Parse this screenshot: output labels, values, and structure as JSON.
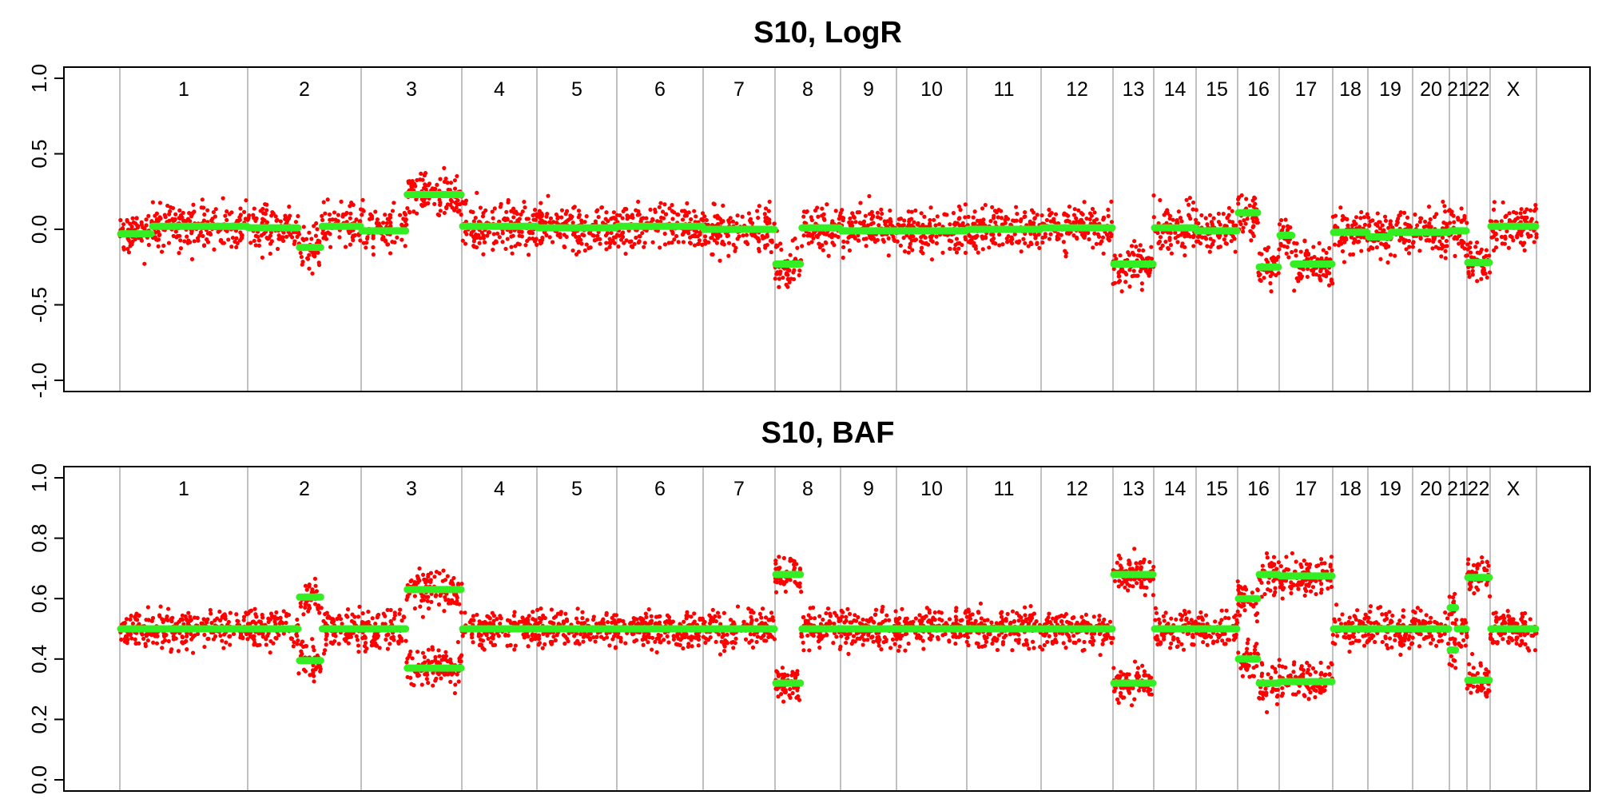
{
  "chromosomes": [
    {
      "label": "1"
    },
    {
      "label": "2"
    },
    {
      "label": "3"
    },
    {
      "label": "4"
    },
    {
      "label": "5"
    },
    {
      "label": "6"
    },
    {
      "label": "7"
    },
    {
      "label": "8"
    },
    {
      "label": "9"
    },
    {
      "label": "10"
    },
    {
      "label": "11"
    },
    {
      "label": "12"
    },
    {
      "label": "13"
    },
    {
      "label": "14"
    },
    {
      "label": "15"
    },
    {
      "label": "16"
    },
    {
      "label": "17"
    },
    {
      "label": "18"
    },
    {
      "label": "19"
    },
    {
      "label": "20"
    },
    {
      "label": "21"
    },
    {
      "label": "22"
    },
    {
      "label": "X"
    }
  ],
  "colors": {
    "points": "#ff0000",
    "segments": "#33ee22",
    "separators": "#c0c0c0",
    "frame": "#000000"
  },
  "chart_data": [
    {
      "type": "scatter",
      "title": "S10, LogR",
      "xlabel": "",
      "ylabel": "",
      "ylim": [
        -1.0,
        1.0
      ],
      "yticks": [
        "-1.0",
        "-0.5",
        "0.0",
        "0.5",
        "1.0"
      ],
      "grid": false,
      "segments": [
        {
          "chrom": "1",
          "from": 0.0,
          "to": 0.25,
          "value": -0.03
        },
        {
          "chrom": "1",
          "from": 0.25,
          "to": 1.0,
          "value": 0.02
        },
        {
          "chrom": "2",
          "from": 0.0,
          "to": 0.45,
          "value": 0.01
        },
        {
          "chrom": "2",
          "from": 0.45,
          "to": 0.65,
          "value": -0.12
        },
        {
          "chrom": "2",
          "from": 0.65,
          "to": 1.0,
          "value": 0.02
        },
        {
          "chrom": "3",
          "from": 0.0,
          "to": 0.45,
          "value": -0.01
        },
        {
          "chrom": "3",
          "from": 0.45,
          "to": 1.0,
          "value": 0.23
        },
        {
          "chrom": "4",
          "from": 0.0,
          "to": 1.0,
          "value": 0.02
        },
        {
          "chrom": "5",
          "from": 0.0,
          "to": 1.0,
          "value": 0.01
        },
        {
          "chrom": "6",
          "from": 0.0,
          "to": 1.0,
          "value": 0.02
        },
        {
          "chrom": "7",
          "from": 0.0,
          "to": 1.0,
          "value": 0.0
        },
        {
          "chrom": "8",
          "from": 0.0,
          "to": 0.4,
          "value": -0.23
        },
        {
          "chrom": "8",
          "from": 0.4,
          "to": 1.0,
          "value": 0.01
        },
        {
          "chrom": "9",
          "from": 0.0,
          "to": 1.0,
          "value": -0.01
        },
        {
          "chrom": "10",
          "from": 0.0,
          "to": 1.0,
          "value": -0.01
        },
        {
          "chrom": "11",
          "from": 0.0,
          "to": 1.0,
          "value": 0.0
        },
        {
          "chrom": "12",
          "from": 0.0,
          "to": 1.0,
          "value": 0.01
        },
        {
          "chrom": "13",
          "from": 0.0,
          "to": 1.0,
          "value": -0.23
        },
        {
          "chrom": "14",
          "from": 0.0,
          "to": 1.0,
          "value": 0.01
        },
        {
          "chrom": "15",
          "from": 0.0,
          "to": 1.0,
          "value": -0.01
        },
        {
          "chrom": "16",
          "from": 0.0,
          "to": 0.5,
          "value": 0.11
        },
        {
          "chrom": "16",
          "from": 0.5,
          "to": 1.0,
          "value": -0.25
        },
        {
          "chrom": "17",
          "from": 0.0,
          "to": 0.25,
          "value": -0.04
        },
        {
          "chrom": "17",
          "from": 0.25,
          "to": 0.5,
          "value": -0.23
        },
        {
          "chrom": "17",
          "from": 0.5,
          "to": 1.0,
          "value": -0.23
        },
        {
          "chrom": "18",
          "from": 0.0,
          "to": 1.0,
          "value": -0.02
        },
        {
          "chrom": "19",
          "from": 0.0,
          "to": 0.5,
          "value": -0.05
        },
        {
          "chrom": "19",
          "from": 0.5,
          "to": 1.0,
          "value": -0.02
        },
        {
          "chrom": "20",
          "from": 0.0,
          "to": 1.0,
          "value": -0.02
        },
        {
          "chrom": "21",
          "from": 0.0,
          "to": 1.0,
          "value": -0.01
        },
        {
          "chrom": "22",
          "from": 0.0,
          "to": 1.0,
          "value": -0.22
        },
        {
          "chrom": "X",
          "from": 0.0,
          "to": 1.0,
          "value": 0.02
        }
      ]
    },
    {
      "type": "scatter",
      "title": "S10, BAF",
      "xlabel": "",
      "ylabel": "",
      "ylim": [
        0.0,
        1.0
      ],
      "yticks": [
        "0.0",
        "0.2",
        "0.4",
        "0.6",
        "0.8",
        "1.0"
      ],
      "grid": false,
      "segments": [
        {
          "chrom": "1",
          "from": 0.0,
          "to": 1.0,
          "value": 0.5
        },
        {
          "chrom": "2",
          "from": 0.0,
          "to": 0.45,
          "value": 0.5
        },
        {
          "chrom": "2",
          "from": 0.45,
          "to": 0.65,
          "value": 0.605
        },
        {
          "chrom": "2",
          "from": 0.45,
          "to": 0.65,
          "value": 0.395
        },
        {
          "chrom": "2",
          "from": 0.65,
          "to": 1.0,
          "value": 0.5
        },
        {
          "chrom": "3",
          "from": 0.0,
          "to": 0.45,
          "value": 0.5
        },
        {
          "chrom": "3",
          "from": 0.45,
          "to": 1.0,
          "value": 0.63
        },
        {
          "chrom": "3",
          "from": 0.45,
          "to": 1.0,
          "value": 0.37
        },
        {
          "chrom": "4",
          "from": 0.0,
          "to": 1.0,
          "value": 0.5
        },
        {
          "chrom": "5",
          "from": 0.0,
          "to": 1.0,
          "value": 0.5
        },
        {
          "chrom": "6",
          "from": 0.0,
          "to": 1.0,
          "value": 0.5
        },
        {
          "chrom": "7",
          "from": 0.0,
          "to": 1.0,
          "value": 0.5
        },
        {
          "chrom": "8",
          "from": 0.0,
          "to": 0.4,
          "value": 0.68
        },
        {
          "chrom": "8",
          "from": 0.0,
          "to": 0.4,
          "value": 0.32
        },
        {
          "chrom": "8",
          "from": 0.4,
          "to": 1.0,
          "value": 0.5
        },
        {
          "chrom": "9",
          "from": 0.0,
          "to": 1.0,
          "value": 0.5
        },
        {
          "chrom": "10",
          "from": 0.0,
          "to": 1.0,
          "value": 0.5
        },
        {
          "chrom": "11",
          "from": 0.0,
          "to": 1.0,
          "value": 0.5
        },
        {
          "chrom": "12",
          "from": 0.0,
          "to": 1.0,
          "value": 0.5
        },
        {
          "chrom": "13",
          "from": 0.0,
          "to": 1.0,
          "value": 0.68
        },
        {
          "chrom": "13",
          "from": 0.0,
          "to": 1.0,
          "value": 0.32
        },
        {
          "chrom": "14",
          "from": 0.0,
          "to": 1.0,
          "value": 0.5
        },
        {
          "chrom": "15",
          "from": 0.0,
          "to": 1.0,
          "value": 0.5
        },
        {
          "chrom": "16",
          "from": 0.0,
          "to": 0.5,
          "value": 0.6
        },
        {
          "chrom": "16",
          "from": 0.0,
          "to": 0.5,
          "value": 0.4
        },
        {
          "chrom": "16",
          "from": 0.5,
          "to": 1.0,
          "value": 0.68
        },
        {
          "chrom": "16",
          "from": 0.5,
          "to": 1.0,
          "value": 0.32
        },
        {
          "chrom": "17",
          "from": 0.0,
          "to": 1.0,
          "value": 0.675
        },
        {
          "chrom": "17",
          "from": 0.0,
          "to": 1.0,
          "value": 0.325
        },
        {
          "chrom": "18",
          "from": 0.0,
          "to": 1.0,
          "value": 0.5
        },
        {
          "chrom": "19",
          "from": 0.0,
          "to": 1.0,
          "value": 0.5
        },
        {
          "chrom": "20",
          "from": 0.0,
          "to": 1.0,
          "value": 0.5
        },
        {
          "chrom": "21",
          "from": 0.0,
          "to": 0.4,
          "value": 0.57
        },
        {
          "chrom": "21",
          "from": 0.0,
          "to": 0.4,
          "value": 0.43
        },
        {
          "chrom": "21",
          "from": 0.4,
          "to": 1.0,
          "value": 0.5
        },
        {
          "chrom": "22",
          "from": 0.0,
          "to": 1.0,
          "value": 0.67
        },
        {
          "chrom": "22",
          "from": 0.0,
          "to": 1.0,
          "value": 0.33
        },
        {
          "chrom": "X",
          "from": 0.0,
          "to": 1.0,
          "value": 0.5
        }
      ]
    }
  ]
}
